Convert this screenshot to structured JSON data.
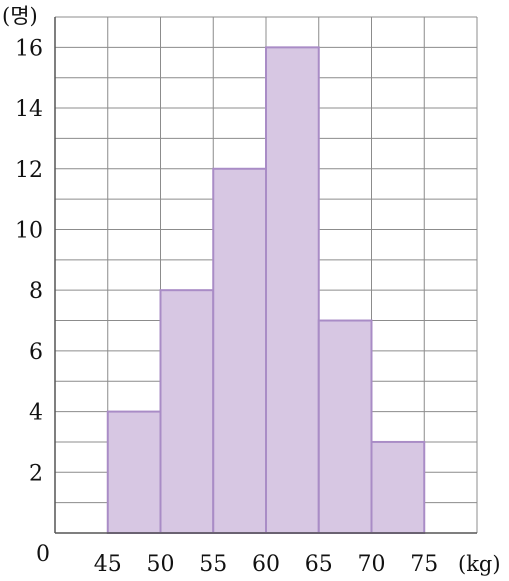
{
  "chart_data": {
    "type": "bar",
    "subtype": "histogram",
    "bin_edges": [
      45,
      50,
      55,
      60,
      65,
      70,
      75
    ],
    "values": [
      4,
      8,
      12,
      16,
      7,
      3
    ],
    "x_tick_labels": [
      "45",
      "50",
      "55",
      "60",
      "65",
      "70",
      "75"
    ],
    "y_tick_labels": [
      "2",
      "4",
      "6",
      "8",
      "10",
      "12",
      "14",
      "16"
    ],
    "origin_label": "0",
    "xunit": "(kg)",
    "yunit": "(명)",
    "xlim": [
      40,
      80
    ],
    "ylim": [
      0,
      17
    ],
    "grid": true,
    "bar_color": "#d7c7e3",
    "bar_edge_color": "#a98cc6",
    "grid_color": "#8c8c8c"
  }
}
